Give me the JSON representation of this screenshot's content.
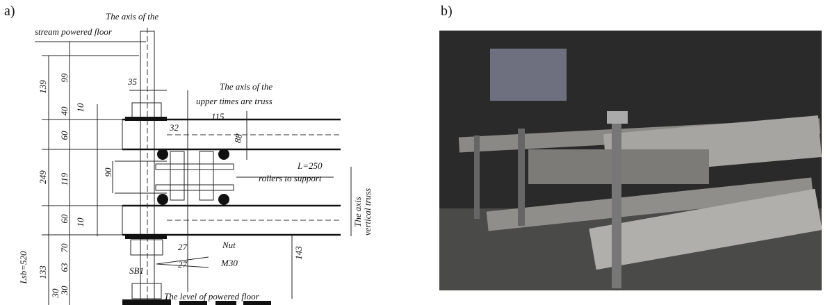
{
  "panels": [
    {
      "label": "a)",
      "annotations": [
        "The axis of the",
        "stream powered floor",
        "139",
        "99",
        "40",
        "10",
        "60",
        "35",
        "The axis of the",
        "upper times are truss",
        "115",
        "32",
        "88",
        "249",
        "119",
        "90",
        "L=250",
        "rollers to support",
        "The axis",
        "vertical truss",
        "60",
        "10",
        "Lsb=520",
        "133",
        "70",
        "63",
        "30",
        "30",
        "27",
        "27",
        "SB1",
        "Nut",
        "M30",
        "143",
        "The level of powered floor"
      ]
    },
    {
      "label": "b)"
    }
  ]
}
